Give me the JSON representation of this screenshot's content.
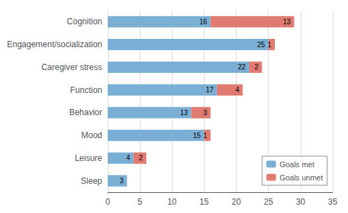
{
  "chart_data": {
    "type": "bar",
    "orientation": "horizontal",
    "stacked": true,
    "categories": [
      "Sleep",
      "Leisure",
      "Mood",
      "Behavior",
      "Function",
      "Caregiver stress",
      "Engagement/socialization",
      "Cognition"
    ],
    "series": [
      {
        "name": "Goals met",
        "color": "#7aaed4",
        "values": [
          3,
          4,
          15,
          13,
          17,
          22,
          25,
          16
        ]
      },
      {
        "name": "Goals unmet",
        "color": "#e07b72",
        "values": [
          0,
          2,
          1,
          3,
          4,
          2,
          1,
          13
        ]
      }
    ],
    "xlim": [
      0,
      35
    ],
    "xticks": [
      0,
      5,
      10,
      15,
      20,
      25,
      30,
      35
    ],
    "grid": true,
    "legend": "lower right",
    "data_labels": true
  }
}
